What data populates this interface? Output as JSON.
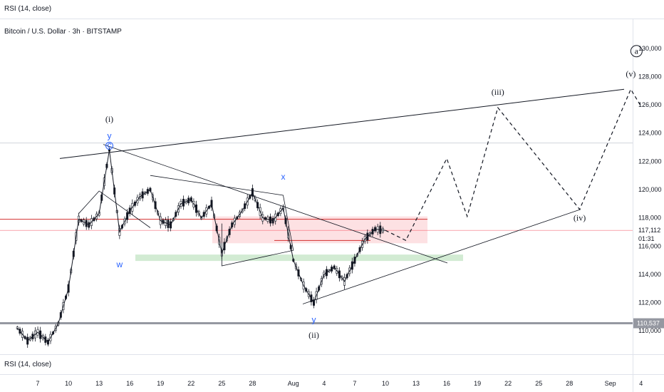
{
  "header": {
    "rsi_top": "RSI (14, close)",
    "symbol_title": "Bitcoin / U.S. Dollar · 3h · BITSTAMP",
    "rsi_bottom": "RSI (14, close)"
  },
  "chart_data": {
    "type": "candlestick",
    "symbol": "Bitcoin / U.S. Dollar",
    "timeframe": "3h",
    "exchange": "BITSTAMP",
    "ylim": [
      109000,
      131000
    ],
    "y_ticks": [
      110000,
      112000,
      114000,
      116000,
      118000,
      120000,
      122000,
      124000,
      126000,
      128000,
      130000
    ],
    "y_tick_labels": [
      "110,000",
      "112,000",
      "114,000",
      "116,000",
      "118,000",
      "120,000",
      "122,000",
      "124,000",
      "126,000",
      "128,000",
      "130,000"
    ],
    "x_tick_labels": [
      "7",
      "10",
      "13",
      "16",
      "19",
      "22",
      "25",
      "28",
      "Aug",
      "4",
      "7",
      "10",
      "13",
      "16",
      "19",
      "22",
      "25",
      "28",
      "Sep",
      "4"
    ],
    "current_price": {
      "value": 117112,
      "label": "117,112",
      "countdown": "01:31",
      "color": "#f23645"
    },
    "support_level": {
      "value": 110537,
      "label": "110,537",
      "color": "#9598a1"
    },
    "resistance_zone": [
      116200,
      118100
    ],
    "support_zone": [
      115100,
      115400
    ],
    "red_line_level": 117900,
    "history_polyline": [
      {
        "t": "Jul 5",
        "y": 110200
      },
      {
        "t": "Jul 6",
        "y": 109300
      },
      {
        "t": "Jul 7",
        "y": 109900
      },
      {
        "t": "Jul 8",
        "y": 109200
      },
      {
        "t": "Jul 9",
        "y": 110500
      },
      {
        "t": "Jul 10",
        "y": 113000
      },
      {
        "t": "Jul 11",
        "y": 117900
      },
      {
        "t": "Jul 12",
        "y": 117500
      },
      {
        "t": "Jul 13",
        "y": 118300
      },
      {
        "t": "Jul 14",
        "y": 122800
      },
      {
        "t": "Jul 15",
        "y": 117000
      },
      {
        "t": "Jul 16",
        "y": 118500
      },
      {
        "t": "Jul 17",
        "y": 119500
      },
      {
        "t": "Jul 18",
        "y": 120000
      },
      {
        "t": "Jul 19",
        "y": 117800
      },
      {
        "t": "Jul 20",
        "y": 117500
      },
      {
        "t": "Jul 21",
        "y": 119000
      },
      {
        "t": "Jul 22",
        "y": 119300
      },
      {
        "t": "Jul 23",
        "y": 118000
      },
      {
        "t": "Jul 24",
        "y": 119000
      },
      {
        "t": "Jul 25",
        "y": 115500
      },
      {
        "t": "Jul 26",
        "y": 117500
      },
      {
        "t": "Jul 27",
        "y": 118500
      },
      {
        "t": "Jul 28",
        "y": 119800
      },
      {
        "t": "Jul 29",
        "y": 118000
      },
      {
        "t": "Jul 30",
        "y": 117800
      },
      {
        "t": "Jul 31",
        "y": 118700
      },
      {
        "t": "Aug 1",
        "y": 115000
      },
      {
        "t": "Aug 2",
        "y": 113200
      },
      {
        "t": "Aug 3",
        "y": 112000
      },
      {
        "t": "Aug 4",
        "y": 114000
      },
      {
        "t": "Aug 5",
        "y": 114500
      },
      {
        "t": "Aug 6",
        "y": 113500
      },
      {
        "t": "Aug 7",
        "y": 115000
      },
      {
        "t": "Aug 8",
        "y": 116500
      },
      {
        "t": "Aug 9",
        "y": 117200
      },
      {
        "t": "Aug 10",
        "y": 117112
      }
    ],
    "projection_path": [
      {
        "t": "Aug 10",
        "y": 117112
      },
      {
        "t": "Aug 12",
        "y": 116400
      },
      {
        "t": "Aug 16",
        "y": 122200
      },
      {
        "t": "Aug 18",
        "y": 118100
      },
      {
        "t": "Aug 21",
        "y": 125800
      },
      {
        "t": "Aug 29",
        "y": 118600
      },
      {
        "t": "Sep 3",
        "y": 127100
      },
      {
        "t": "Sep 4",
        "y": 125900
      }
    ],
    "wave_labels": [
      {
        "text": "(i)",
        "t": "Jul 14",
        "y": 124800
      },
      {
        "text": "(ii)",
        "t": "Aug 3",
        "y": 109500
      },
      {
        "text": "(iii)",
        "t": "Aug 21",
        "y": 126700
      },
      {
        "text": "(iv)",
        "t": "Aug 29",
        "y": 117800
      },
      {
        "text": "(v)",
        "t": "Sep 3",
        "y": 128000
      },
      {
        "text": "a",
        "t": "Sep 3",
        "y": 129600
      }
    ],
    "blue_labels": [
      {
        "text": "y",
        "t": "Jul 14",
        "y": 123600
      },
      {
        "text": "c",
        "t": "Jul 14",
        "y": 122900
      },
      {
        "text": "w",
        "t": "Jul 15",
        "y": 114500
      },
      {
        "text": "x",
        "t": "Jul 31",
        "y": 120700
      },
      {
        "text": "y",
        "t": "Aug 3",
        "y": 110600
      }
    ]
  }
}
